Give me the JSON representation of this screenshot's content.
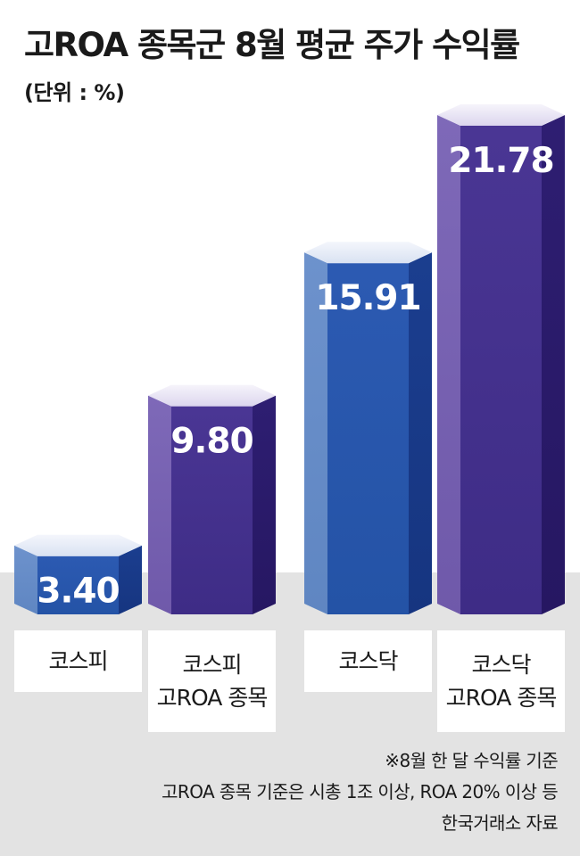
{
  "title": "고ROA 종목군 8월 평균 주가 수익률",
  "unit": "(단위 : %)",
  "chart_data": {
    "type": "bar",
    "title": "고ROA 종목군 8월 평균 주가 수익률",
    "ylabel": "(단위 : %)",
    "categories": [
      "코스피",
      "코스피\n고ROA 종목",
      "코스닥",
      "코스닥\n고ROA 종목"
    ],
    "values": [
      3.4,
      9.8,
      15.91,
      21.78
    ],
    "value_labels": [
      "3.40",
      "9.80",
      "15.91",
      "21.78"
    ],
    "ylim": [
      0,
      21.78
    ],
    "grid": false,
    "colors": [
      "blue",
      "purple",
      "blue",
      "purple"
    ]
  },
  "palette": {
    "blue": {
      "left": "#6f95cc",
      "mid": "#2e5bb0",
      "right": "#1c3e8e",
      "top": "#e9eef8"
    },
    "purple": {
      "left": "#7b65b4",
      "mid": "#46338f",
      "right": "#2c1c6e",
      "top": "#ece9f6"
    }
  },
  "notes": [
    "※8월  한 달 수익률 기준",
    "고ROA 종목 기준은 시총 1조 이상, ROA 20% 이상 등",
    "한국거래소 자료"
  ]
}
